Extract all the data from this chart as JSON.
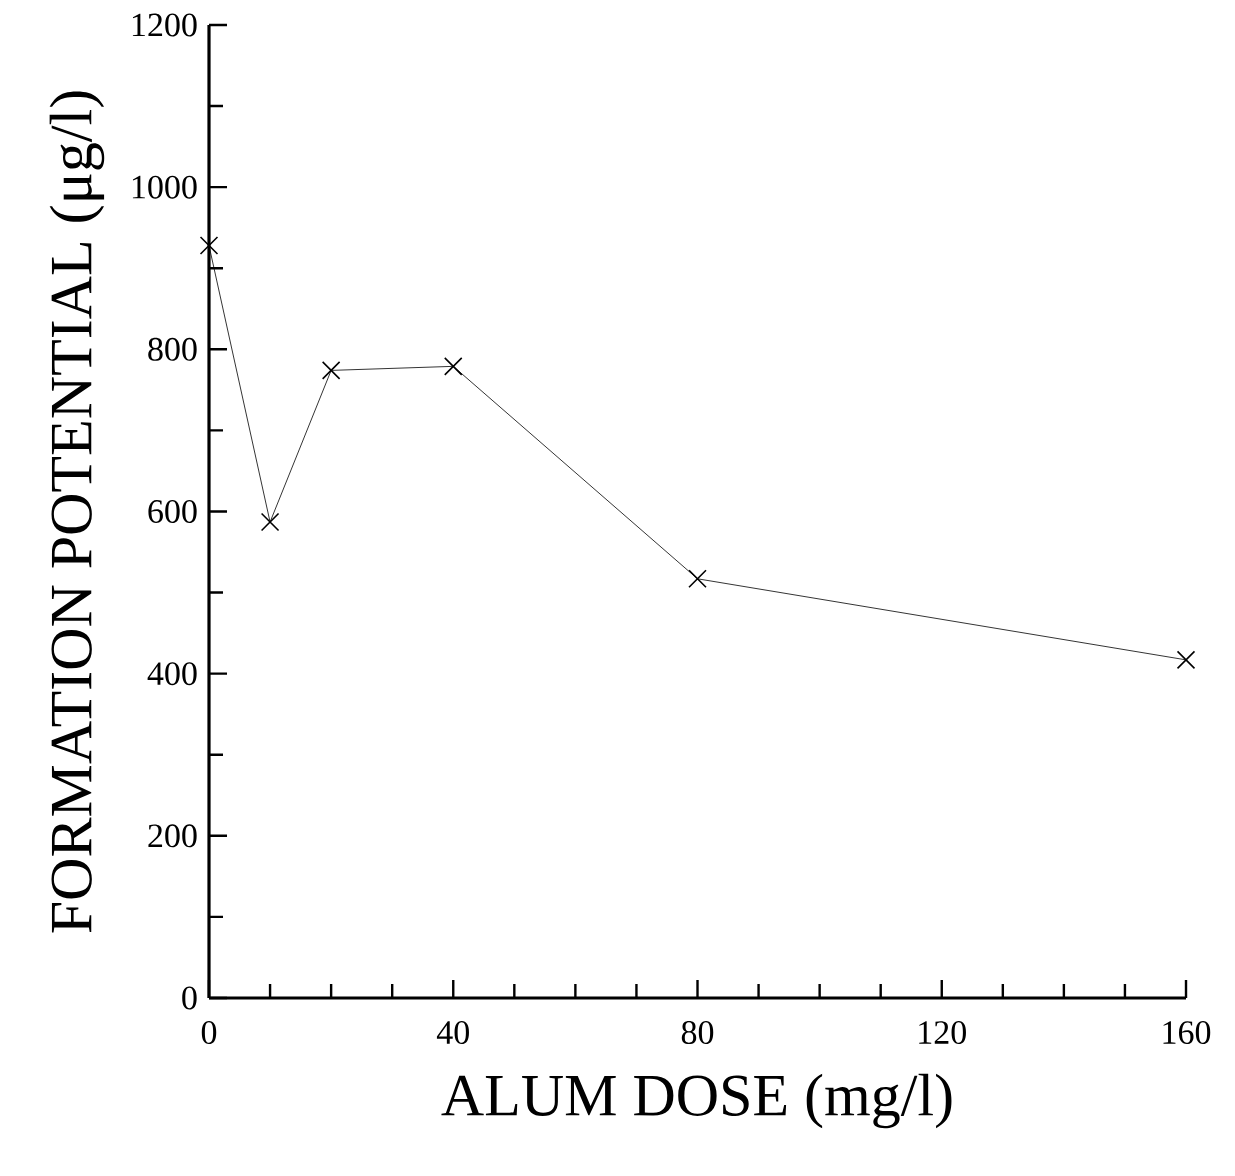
{
  "chart_data": {
    "type": "line",
    "xlabel": "ALUM DOSE (mg/l)",
    "ylabel": "FORMATION POTENTIAL (μg/l)",
    "x": [
      0,
      10,
      20,
      40,
      80,
      160
    ],
    "series": [
      {
        "color": "#000000",
        "values": [
          928,
          587,
          774,
          779,
          517,
          417
        ]
      }
    ],
    "xlim": [
      0,
      160
    ],
    "xticks": [
      0,
      {
        "value": 10,
        "label": null
      },
      {
        "value": 20,
        "label": null
      },
      {
        "value": 30,
        "label": null
      },
      40,
      {
        "value": 50,
        "label": null
      },
      {
        "value": 60,
        "label": null
      },
      {
        "value": 70,
        "label": null
      },
      80,
      {
        "value": 90,
        "label": null
      },
      {
        "value": 100,
        "label": null
      },
      {
        "value": 110,
        "label": null
      },
      120,
      {
        "value": 130,
        "label": null
      },
      {
        "value": 140,
        "label": null
      },
      {
        "value": 150,
        "label": null
      },
      160
    ],
    "ylim": [
      0,
      1200
    ],
    "yticks": [
      0,
      {
        "value": 100,
        "label": null
      },
      200,
      {
        "value": 300,
        "label": null
      },
      400,
      {
        "value": 500,
        "label": null
      },
      600,
      {
        "value": 700,
        "label": null
      },
      800,
      {
        "value": 900,
        "label": null
      },
      1000,
      {
        "value": 1100,
        "label": null
      },
      1200
    ],
    "grid": false,
    "marker": "cross",
    "line_style": "solid"
  }
}
